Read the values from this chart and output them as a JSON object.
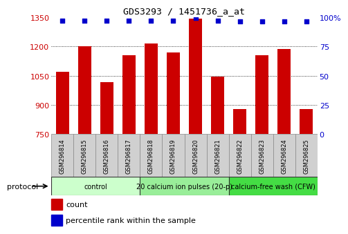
{
  "title": "GDS3293 / 1451736_a_at",
  "samples": [
    "GSM296814",
    "GSM296815",
    "GSM296816",
    "GSM296817",
    "GSM296818",
    "GSM296819",
    "GSM296820",
    "GSM296821",
    "GSM296822",
    "GSM296823",
    "GSM296824",
    "GSM296825"
  ],
  "counts": [
    1068,
    1200,
    1018,
    1155,
    1215,
    1170,
    1340,
    1045,
    878,
    1155,
    1185,
    878
  ],
  "percentile_ranks": [
    97,
    97,
    97,
    97,
    97,
    97,
    99,
    97,
    96,
    96,
    96,
    96
  ],
  "bar_color": "#cc0000",
  "dot_color": "#0000cc",
  "ylim_left": [
    750,
    1350
  ],
  "ylim_right": [
    0,
    100
  ],
  "yticks_left": [
    750,
    900,
    1050,
    1200,
    1350
  ],
  "yticks_right": [
    0,
    25,
    50,
    75,
    100
  ],
  "ytick_right_labels": [
    "0",
    "25",
    "50",
    "75",
    "100%"
  ],
  "groups": [
    {
      "label": "control",
      "start": 0,
      "end": 3,
      "color": "#ccffcc"
    },
    {
      "label": "20 calcium ion pulses (20-p)",
      "start": 4,
      "end": 7,
      "color": "#99ee99"
    },
    {
      "label": "calcium-free wash (CFW)",
      "start": 8,
      "end": 11,
      "color": "#44dd44"
    }
  ],
  "protocol_label": "protocol",
  "legend_count_label": "count",
  "legend_pct_label": "percentile rank within the sample",
  "left_axis_color": "#cc0000",
  "right_axis_color": "#0000cc",
  "bar_bottom": 750
}
